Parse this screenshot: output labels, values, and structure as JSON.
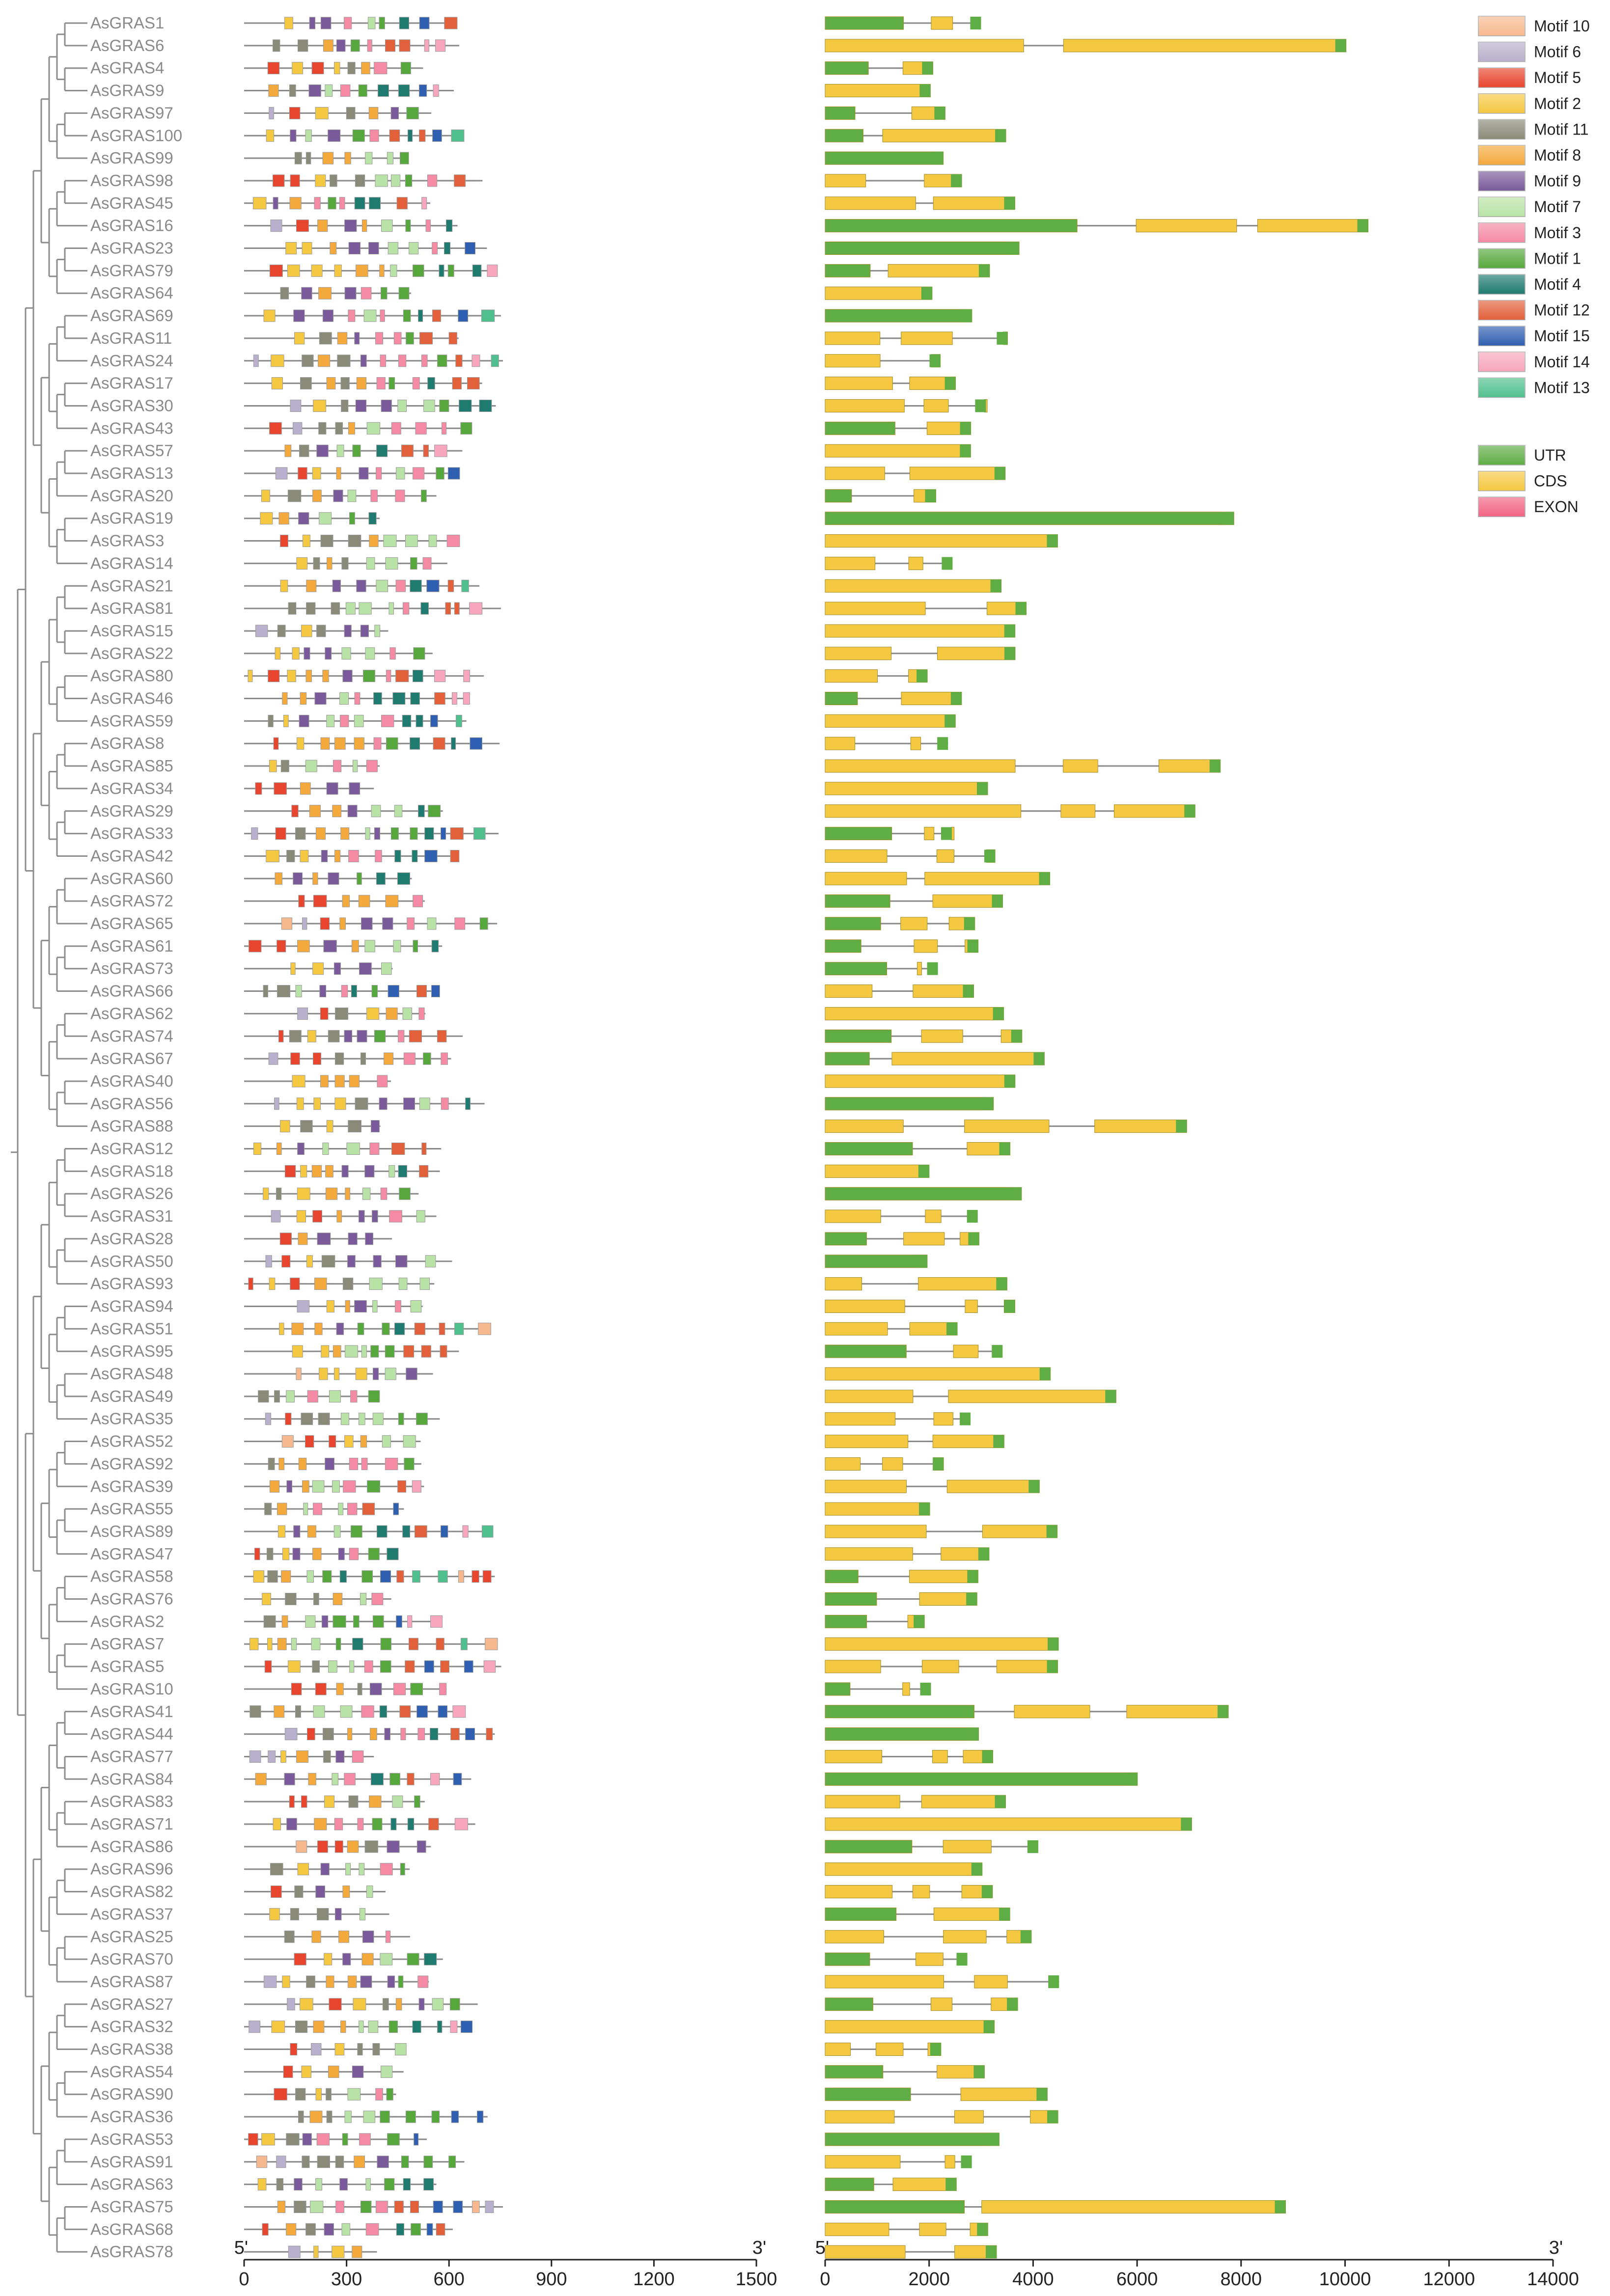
{
  "genes": [
    "AsGRAS1",
    "AsGRAS6",
    "AsGRAS4",
    "AsGRAS9",
    "AsGRAS97",
    "AsGRAS100",
    "AsGRAS99",
    "AsGRAS98",
    "AsGRAS45",
    "AsGRAS16",
    "AsGRAS23",
    "AsGRAS79",
    "AsGRAS64",
    "AsGRAS69",
    "AsGRAS11",
    "AsGRAS24",
    "AsGRAS17",
    "AsGRAS30",
    "AsGRAS43",
    "AsGRAS57",
    "AsGRAS13",
    "AsGRAS20",
    "AsGRAS19",
    "AsGRAS3",
    "AsGRAS14",
    "AsGRAS21",
    "AsGRAS81",
    "AsGRAS15",
    "AsGRAS22",
    "AsGRAS80",
    "AsGRAS46",
    "AsGRAS59",
    "AsGRAS8",
    "AsGRAS85",
    "AsGRAS34",
    "AsGRAS29",
    "AsGRAS33",
    "AsGRAS42",
    "AsGRAS60",
    "AsGRAS72",
    "AsGRAS65",
    "AsGRAS61",
    "AsGRAS73",
    "AsGRAS66",
    "AsGRAS62",
    "AsGRAS74",
    "AsGRAS67",
    "AsGRAS40",
    "AsGRAS56",
    "AsGRAS88",
    "AsGRAS12",
    "AsGRAS18",
    "AsGRAS26",
    "AsGRAS31",
    "AsGRAS28",
    "AsGRAS50",
    "AsGRAS93",
    "AsGRAS94",
    "AsGRAS51",
    "AsGRAS95",
    "AsGRAS48",
    "AsGRAS49",
    "AsGRAS35",
    "AsGRAS52",
    "AsGRAS92",
    "AsGRAS39",
    "AsGRAS55",
    "AsGRAS89",
    "AsGRAS47",
    "AsGRAS58",
    "AsGRAS76",
    "AsGRAS2",
    "AsGRAS7",
    "AsGRAS5",
    "AsGRAS10",
    "AsGRAS41",
    "AsGRAS44",
    "AsGRAS77",
    "AsGRAS84",
    "AsGRAS83",
    "AsGRAS71",
    "AsGRAS86",
    "AsGRAS96",
    "AsGRAS82",
    "AsGRAS37",
    "AsGRAS25",
    "AsGRAS70",
    "AsGRAS87",
    "AsGRAS27",
    "AsGRAS32",
    "AsGRAS38",
    "AsGRAS54",
    "AsGRAS90",
    "AsGRAS36",
    "AsGRAS53",
    "AsGRAS91",
    "AsGRAS63",
    "AsGRAS75",
    "AsGRAS68",
    "AsGRAS78"
  ],
  "motif_axis": {
    "start_label": "5'",
    "end_label": "3'",
    "ticks": [
      "0",
      "300",
      "600",
      "900",
      "1200",
      "1500"
    ]
  },
  "structure_axis": {
    "start_label": "5'",
    "end_label": "3'",
    "ticks": [
      "0",
      "2000",
      "4000",
      "6000",
      "8000",
      "10000",
      "12000",
      "14000"
    ]
  },
  "motif_legend": [
    {
      "label": "Motif 10",
      "color": "#f6b98f"
    },
    {
      "label": "Motif 6",
      "color": "#b8b0cc"
    },
    {
      "label": "Motif 5",
      "color": "#e8452e"
    },
    {
      "label": "Motif 2",
      "color": "#f5c842"
    },
    {
      "label": "Motif 11",
      "color": "#8a8a78"
    },
    {
      "label": "Motif 8",
      "color": "#f4a93c"
    },
    {
      "label": "Motif 9",
      "color": "#7a5a9a"
    },
    {
      "label": "Motif 7",
      "color": "#b9e3a6"
    },
    {
      "label": "Motif 3",
      "color": "#f58aa4"
    },
    {
      "label": "Motif 1",
      "color": "#56a83c"
    },
    {
      "label": "Motif 4",
      "color": "#1f7a70"
    },
    {
      "label": "Motif 12",
      "color": "#e2603a"
    },
    {
      "label": "Motif 15",
      "color": "#2f5fb0"
    },
    {
      "label": "Motif 14",
      "color": "#f7a6bd"
    },
    {
      "label": "Motif 13",
      "color": "#4fbf8d"
    }
  ],
  "structure_legend": [
    {
      "label": "UTR",
      "color": "#5fad45"
    },
    {
      "label": "CDS",
      "color": "#f5c842"
    },
    {
      "label": "EXON",
      "color": "#f26482"
    }
  ]
}
